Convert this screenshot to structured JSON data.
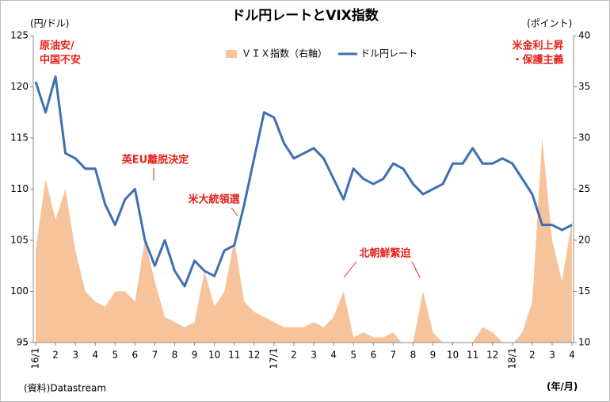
{
  "chart_data": {
    "type": "line",
    "title": "ドル円レートとVIX指数",
    "y_label": "(円/ドル)",
    "y2_label": "(ポイント)",
    "x_label": "(年/月)",
    "source": "(資料)Datastream",
    "categories": [
      "16/1",
      null,
      "2",
      null,
      "3",
      null,
      "4",
      null,
      "5",
      null,
      "6",
      null,
      "7",
      null,
      "8",
      null,
      "9",
      null,
      "10",
      null,
      "11",
      null,
      "12",
      null,
      "17/1",
      null,
      "2",
      null,
      "3",
      null,
      "4",
      null,
      "5",
      null,
      "6",
      null,
      "7",
      null,
      "8",
      null,
      "9",
      null,
      "10",
      null,
      "11",
      null,
      "12",
      null,
      "18/1",
      null,
      "2",
      null,
      "3",
      null,
      "4"
    ],
    "series": [
      {
        "name": "ＶＩＸ指数（右軸）",
        "color": "#f7c39a",
        "kind": "area",
        "axis": "y2",
        "values": [
          19,
          26,
          22,
          25,
          19,
          15,
          14,
          13.5,
          15,
          15,
          14,
          20,
          16,
          12.5,
          12,
          11.5,
          12,
          17,
          13.5,
          15,
          20,
          14,
          13,
          12.5,
          12,
          11.5,
          11.5,
          11.5,
          12,
          11.5,
          12.5,
          15,
          10.5,
          11,
          10.5,
          10.5,
          11,
          9.8,
          10,
          15,
          11,
          10,
          9.8,
          10,
          10,
          11.5,
          11,
          10,
          9.8,
          11,
          14,
          30,
          20,
          16,
          22
        ]
      },
      {
        "name": "ドル円レート",
        "color": "#3e6fb3",
        "kind": "line",
        "values": [
          120.5,
          117.5,
          121,
          113.5,
          113,
          112,
          112,
          108.5,
          106.5,
          109,
          110,
          105,
          102.5,
          105,
          102,
          100.5,
          103,
          102,
          101.5,
          104,
          104.5,
          108.5,
          113,
          117.5,
          117,
          114.5,
          113,
          113.5,
          114,
          113,
          111,
          109,
          112,
          111,
          110.5,
          111,
          112.5,
          112,
          110.5,
          109.5,
          110,
          110.5,
          112.5,
          112.5,
          114,
          112.5,
          112.5,
          113,
          112.5,
          111,
          109.5,
          106.5,
          106.5,
          106,
          106.5
        ]
      }
    ],
    "ylim": [
      95,
      125
    ],
    "yticks": [
      95,
      100,
      105,
      110,
      115,
      120,
      125
    ],
    "y2lim": [
      10,
      40
    ],
    "y2ticks": [
      10,
      15,
      20,
      25,
      30,
      35,
      40
    ],
    "legend": "top",
    "annotations": [
      {
        "lines": [
          "原油安/",
          "中国不安"
        ]
      },
      {
        "lines": [
          "英EU離脱決定"
        ]
      },
      {
        "lines": [
          "米大統領選"
        ]
      },
      {
        "lines": [
          "北朝鮮緊迫"
        ]
      },
      {
        "lines": [
          "米金利上昇",
          "・保護主義"
        ]
      }
    ]
  }
}
